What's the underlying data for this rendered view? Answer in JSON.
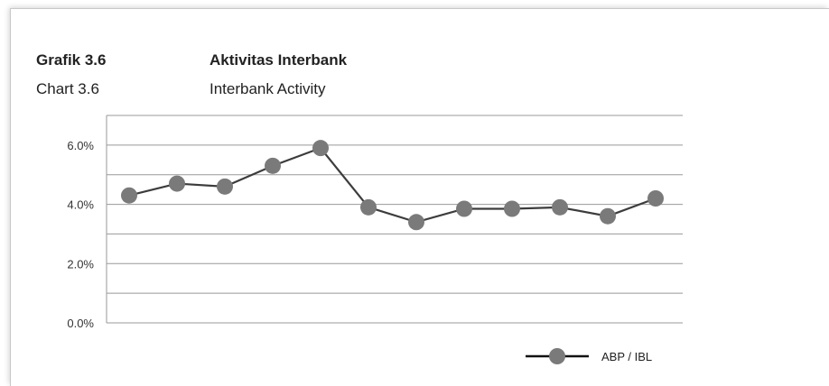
{
  "header": {
    "label_id": "Grafik 3.6",
    "title_id": "Aktivitas Interbank",
    "label_en": "Chart 3.6",
    "title_en": "Interbank Activity"
  },
  "chart_data": {
    "type": "line",
    "x": [
      1,
      2,
      3,
      4,
      5,
      6,
      7,
      8,
      9,
      10,
      11,
      12
    ],
    "series": [
      {
        "name": "ABP / IBL",
        "values": [
          4.3,
          4.7,
          4.6,
          5.3,
          5.9,
          3.9,
          3.4,
          3.85,
          3.85,
          3.9,
          3.6,
          4.2
        ]
      }
    ],
    "ylim": [
      0,
      7
    ],
    "yticks": [
      0,
      2,
      4,
      6
    ],
    "ytick_labels": [
      "0.0%",
      "2.0%",
      "4.0%",
      "6.0%"
    ],
    "grid": true,
    "legend": "bottom-right",
    "colors": {
      "line": "#3c3c3c",
      "marker": "#7a7a7a",
      "grid": "#999999"
    }
  }
}
